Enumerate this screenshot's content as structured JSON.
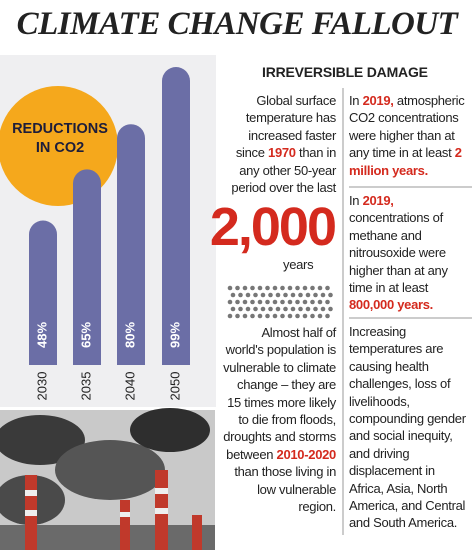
{
  "title": "CLIMATE CHANGE FALLOUT",
  "chart_data": {
    "type": "bar",
    "title": "REDUCTIONS IN CO2",
    "categories": [
      "2030",
      "2035",
      "2040",
      "2050"
    ],
    "values": [
      48,
      65,
      80,
      99
    ],
    "value_labels": [
      "48%",
      "65%",
      "80%",
      "99%"
    ],
    "color": "#6b6ea6"
  },
  "section_title": "IRREVERSIBLE DAMAGE",
  "left_column": {
    "intro": [
      "Global surface temperature has increased faster since ",
      "1970",
      " than in any other 50-year period over the last"
    ],
    "big_number": "2,000",
    "unit": "years",
    "population": [
      "Almost half of world's population is vulnerable to climate change – they are 15 times more likely to die from floods, droughts and storms between ",
      "2010-2020",
      " than those living in low vulnerable region."
    ]
  },
  "right_column": {
    "blocks": [
      [
        "In ",
        "2019,",
        " atmospheric CO2 concentrations were higher than at any time in at least ",
        "2 million years."
      ],
      [
        "In ",
        "2019,",
        " concentrations of methane and nitrousoxide were higher than at any time in at least ",
        "800,000 years."
      ],
      [
        "Increasing temperatures are causing health challenges, loss of livelihoods, compounding gender and social inequity, and driving displacement in Africa, Asia, North America, and Central and South America."
      ]
    ]
  }
}
